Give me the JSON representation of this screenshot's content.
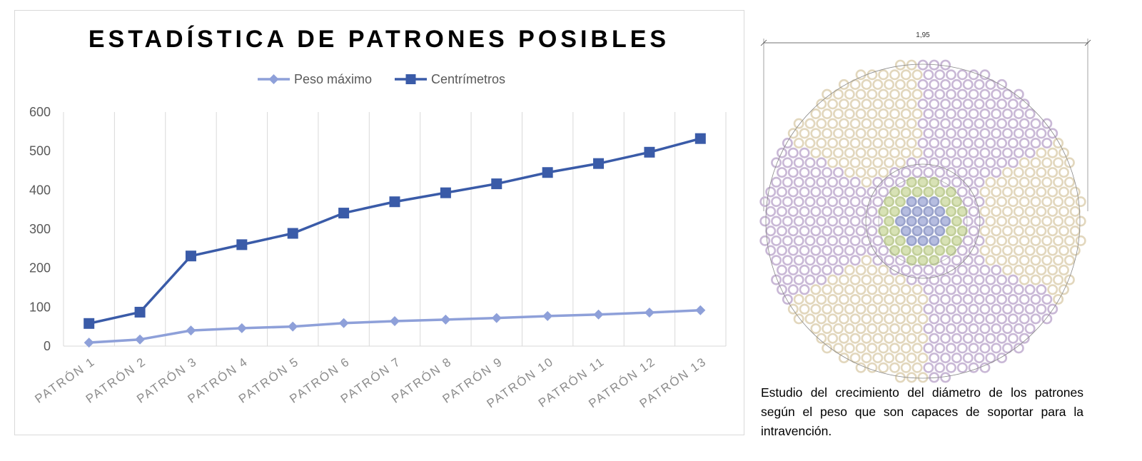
{
  "chart_data": {
    "type": "line",
    "title": "ESTADÍSTICA DE PATRONES POSIBLES",
    "categories": [
      "PATRÓN 1",
      "PATRÓN 2",
      "PATRÓN 3",
      "PATRÓN 4",
      "PATRÓN 5",
      "PATRÓN 6",
      "PATRÓN 7",
      "PATRÓN 8",
      "PATRÓN 9",
      "PATRÓN 10",
      "PATRÓN 11",
      "PATRÓN 12",
      "PATRÓN 13"
    ],
    "series": [
      {
        "name": "Peso máximo",
        "marker": "diamond",
        "color": "#8ea0d9",
        "values": [
          9,
          17,
          40,
          46,
          50,
          59,
          64,
          68,
          72,
          77,
          81,
          86,
          92
        ]
      },
      {
        "name": "Centrímetros",
        "marker": "square",
        "color": "#3a5ba8",
        "values": [
          58,
          87,
          231,
          260,
          289,
          341,
          370,
          393,
          416,
          445,
          468,
          497,
          532
        ]
      }
    ],
    "ylim": [
      0,
      600
    ],
    "yticks": [
      0,
      100,
      200,
      300,
      400,
      500,
      600
    ],
    "xlabel": "",
    "ylabel": "",
    "grid": "vertical",
    "legend": "top-center"
  },
  "drawing": {
    "dimension_label": "1,95"
  },
  "caption": "Estudio del crecimiento del diámetro de los patrones según el peso que son capaces de soportar para la intravención."
}
